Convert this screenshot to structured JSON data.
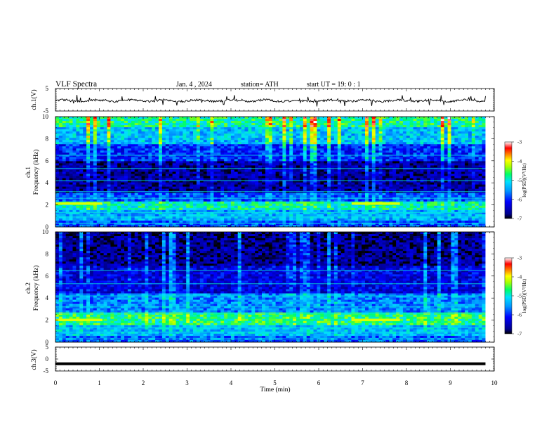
{
  "header": {
    "title": "VLF  Spectra",
    "date": "Jan. 4  , 2024",
    "station": "station= ATH",
    "start": "start  UT =   19: 0   : 1"
  },
  "chart_data": [
    {
      "type": "line",
      "name": "ch1-waveform",
      "ylabel": "ch.1(V)",
      "ylim": [
        -5,
        5
      ],
      "yticks": [
        5,
        -5
      ],
      "xlim": [
        0,
        10
      ],
      "data_end_min": 9.8,
      "baseline_v": -0.4,
      "color": "#000000"
    },
    {
      "type": "heatmap",
      "name": "ch1-spectrogram",
      "ylabel": "ch.1\nFrequency  (kHz)",
      "ylim": [
        0,
        10
      ],
      "yticks": [
        0,
        2,
        4,
        6,
        8,
        10
      ],
      "xlim": [
        0,
        10
      ],
      "data_end_min": 9.8,
      "colorbar": {
        "label": "log(PSD)(V²/Hz)",
        "range": [
          -7,
          -3
        ],
        "ticks": [
          -3,
          -4,
          -5,
          -6,
          -7
        ]
      },
      "bands": [
        {
          "f_khz": [
            0.0,
            0.5
          ],
          "level": -5.8
        },
        {
          "f_khz": [
            0.5,
            1.5
          ],
          "level": -5.4
        },
        {
          "f_khz": [
            1.5,
            2.3
          ],
          "level": -4.9
        },
        {
          "f_khz": [
            2.3,
            3.0
          ],
          "level": -5.8
        },
        {
          "f_khz": [
            3.0,
            6.0
          ],
          "level": -6.6
        },
        {
          "f_khz": [
            6.0,
            7.5
          ],
          "level": -6.0
        },
        {
          "f_khz": [
            7.5,
            9.0
          ],
          "level": -5.3
        },
        {
          "f_khz": [
            9.0,
            10.0
          ],
          "level": -4.8
        }
      ],
      "emission_segments_min": [
        [
          0.0,
          1.07
        ],
        [
          6.75,
          7.85
        ]
      ],
      "emission_f_khz": 2.1
    },
    {
      "type": "heatmap",
      "name": "ch2-spectrogram",
      "ylabel": "ch.2\nFrequency  (kHz)",
      "ylim": [
        0,
        10
      ],
      "yticks": [
        0,
        2,
        4,
        6,
        8,
        10
      ],
      "xlim": [
        0,
        10
      ],
      "data_end_min": 9.8,
      "colorbar": {
        "label": "log(PSD)(V²/Hz)",
        "range": [
          -7,
          -3
        ],
        "ticks": [
          -3,
          -4,
          -5,
          -6,
          -7
        ]
      },
      "bands": [
        {
          "f_khz": [
            0.0,
            0.5
          ],
          "level": -5.7
        },
        {
          "f_khz": [
            0.5,
            1.6
          ],
          "level": -5.3
        },
        {
          "f_khz": [
            1.6,
            2.6
          ],
          "level": -4.7
        },
        {
          "f_khz": [
            2.6,
            4.5
          ],
          "level": -5.6
        },
        {
          "f_khz": [
            4.5,
            7.0
          ],
          "level": -6.3
        },
        {
          "f_khz": [
            7.0,
            10.0
          ],
          "level": -6.7
        }
      ],
      "emission_segments_min": [
        [
          0.0,
          1.07
        ],
        [
          6.75,
          7.85
        ]
      ],
      "emission_f_khz": 2.0
    },
    {
      "type": "line",
      "name": "ch3-waveform",
      "ylabel": "ch.3(V)",
      "ylim": [
        -5,
        5
      ],
      "yticks": [
        5,
        0,
        -5
      ],
      "xlim": [
        0,
        10
      ],
      "data_end_min": 9.8,
      "baseline_v": -2.0,
      "color": "#000000"
    }
  ],
  "xaxis": {
    "label": "Time  (min)",
    "ticks": [
      0,
      1,
      2,
      3,
      4,
      5,
      6,
      7,
      8,
      9,
      10
    ]
  }
}
